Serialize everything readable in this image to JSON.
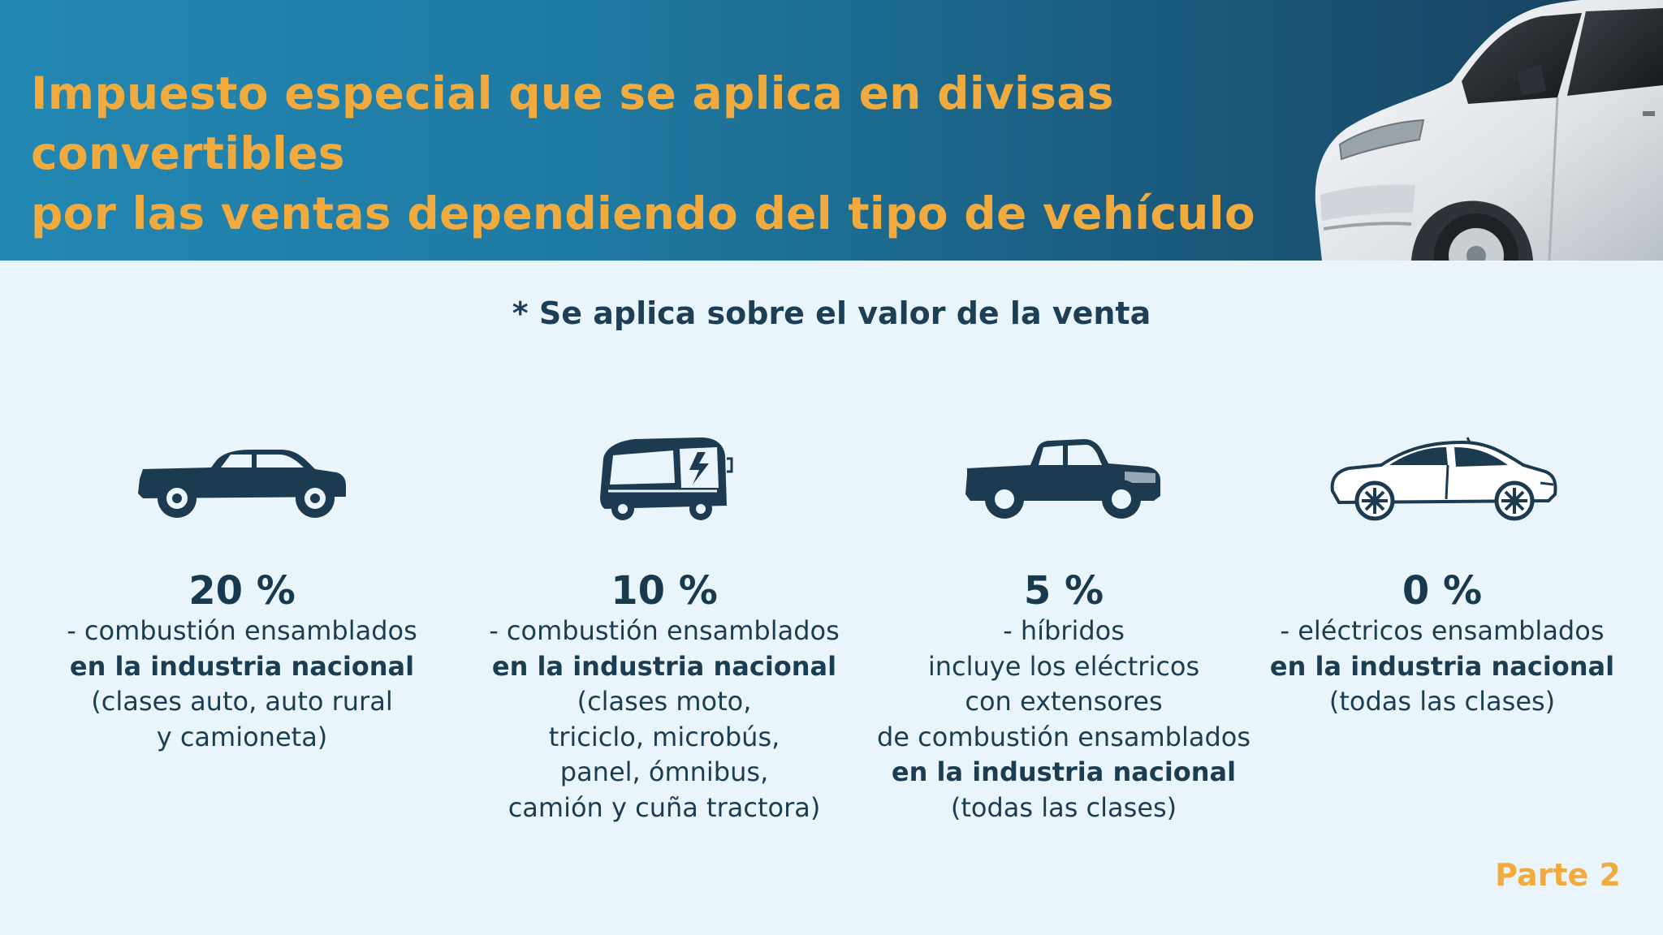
{
  "header": {
    "title_line1": "Impuesto especial que se aplica en divisas convertibles",
    "title_line2": "por las ventas dependiendo del tipo de vehículo"
  },
  "note": "* Se aplica sobre el valor de la venta",
  "colors": {
    "accent": "#f1aa3e",
    "banner_start": "#2287b3",
    "banner_end": "#173f5c",
    "text_dark": "#1b3d52",
    "background": "#eaf4fb"
  },
  "categories": [
    {
      "icon": "pickup-truck-icon",
      "percent": "20 %",
      "lines": [
        {
          "text": "- combustión ensamblados",
          "bold": false
        },
        {
          "text": "en la industria nacional",
          "bold": true
        },
        {
          "text": "(clases auto, auto rural",
          "bold": false
        },
        {
          "text": "y camioneta)",
          "bold": false
        }
      ]
    },
    {
      "icon": "electric-bus-icon",
      "percent": "10 %",
      "lines": [
        {
          "text": "- combustión ensamblados",
          "bold": false
        },
        {
          "text": "en la industria nacional",
          "bold": true
        },
        {
          "text": "(clases moto,",
          "bold": false
        },
        {
          "text": "triciclo, microbús,",
          "bold": false
        },
        {
          "text": "panel, ómnibus,",
          "bold": false
        },
        {
          "text": "camión y cuña tractora)",
          "bold": false
        }
      ]
    },
    {
      "icon": "hybrid-pickup-icon",
      "percent": "5 %",
      "lines": [
        {
          "text": "- híbridos",
          "bold": false
        },
        {
          "text": "incluye los eléctricos",
          "bold": false
        },
        {
          "text": "con extensores",
          "bold": false
        },
        {
          "text": "de combustión ensamblados",
          "bold": false
        },
        {
          "text": "en la industria nacional",
          "bold": true
        },
        {
          "text": "(todas las clases)",
          "bold": false
        }
      ]
    },
    {
      "icon": "electric-car-icon",
      "percent": "0 %",
      "lines": [
        {
          "text": "- eléctricos ensamblados",
          "bold": false
        },
        {
          "text": "en la industria nacional",
          "bold": true
        },
        {
          "text": "(todas las clases)",
          "bold": false
        }
      ]
    }
  ],
  "footer": {
    "part_label": "Parte 2"
  }
}
